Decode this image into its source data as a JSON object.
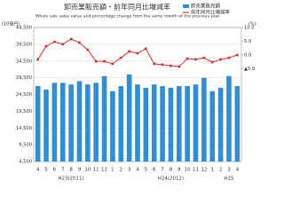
{
  "chart_data": {
    "type": "bar_line",
    "title": "卸売業販売額・前年同月比増減率",
    "subtitle": "Whole sale sales value and percentage change from the same month of the previous year",
    "y_label": "(10億円)",
    "y2_label": "(%)",
    "categories": [
      "4",
      "5",
      "6",
      "7",
      "8",
      "9",
      "10",
      "11",
      "12",
      "1",
      "2",
      "3",
      "4",
      "5",
      "6",
      "7",
      "8",
      "9",
      "10",
      "11",
      "12",
      "1",
      "2",
      "3",
      "4"
    ],
    "year_labels": [
      {
        "index": 4,
        "label": "H23(2011)"
      },
      {
        "index": 16,
        "label": "H24(2012)"
      },
      {
        "index": 23,
        "label": "H25"
      }
    ],
    "series": [
      {
        "name": "卸売業販売額",
        "color": "#2f8fd6",
        "kind": "bar",
        "values": [
          27000,
          26000,
          28000,
          28000,
          27500,
          28500,
          27500,
          28000,
          30000,
          25500,
          27000,
          30500,
          27500,
          26500,
          27500,
          27000,
          26500,
          27000,
          27000,
          27500,
          29500,
          25500,
          26500,
          30000,
          27000
        ]
      },
      {
        "name": "前年同月比増減率",
        "color": "#e02a2a",
        "kind": "line",
        "axis": "y2",
        "values": [
          -1.6,
          3.2,
          4.8,
          3.9,
          5.8,
          4.5,
          1.9,
          -2.3,
          -2.3,
          -3.2,
          -1,
          1.3,
          0.6,
          2.3,
          -3.2,
          -3.5,
          -3.9,
          -4.2,
          -1.3,
          -1.6,
          -1,
          -2.6,
          -1.6,
          -1,
          0
        ]
      }
    ],
    "ylim": [
      4500,
      44500
    ],
    "yticks": [
      {
        "value": 4500,
        "label": "4,500"
      },
      {
        "value": 9500,
        "label": "9,500"
      },
      {
        "value": 14500,
        "label": "14,500"
      },
      {
        "value": 19500,
        "label": "19,500"
      },
      {
        "value": 24500,
        "label": "24,500"
      },
      {
        "value": 29500,
        "label": "29,500"
      },
      {
        "value": 34500,
        "label": "34,500"
      },
      {
        "value": 39500,
        "label": "39,500"
      },
      {
        "value": 44500,
        "label": "44,500"
      }
    ],
    "y2lim": [
      -38.75,
      10
    ],
    "y2ticks": [
      {
        "value": 10,
        "label": "10.0"
      },
      {
        "value": 5,
        "label": "5.0"
      },
      {
        "value": 0,
        "label": "0.0"
      },
      {
        "value": -5,
        "label": "▲5.0"
      }
    ],
    "grid": true
  }
}
